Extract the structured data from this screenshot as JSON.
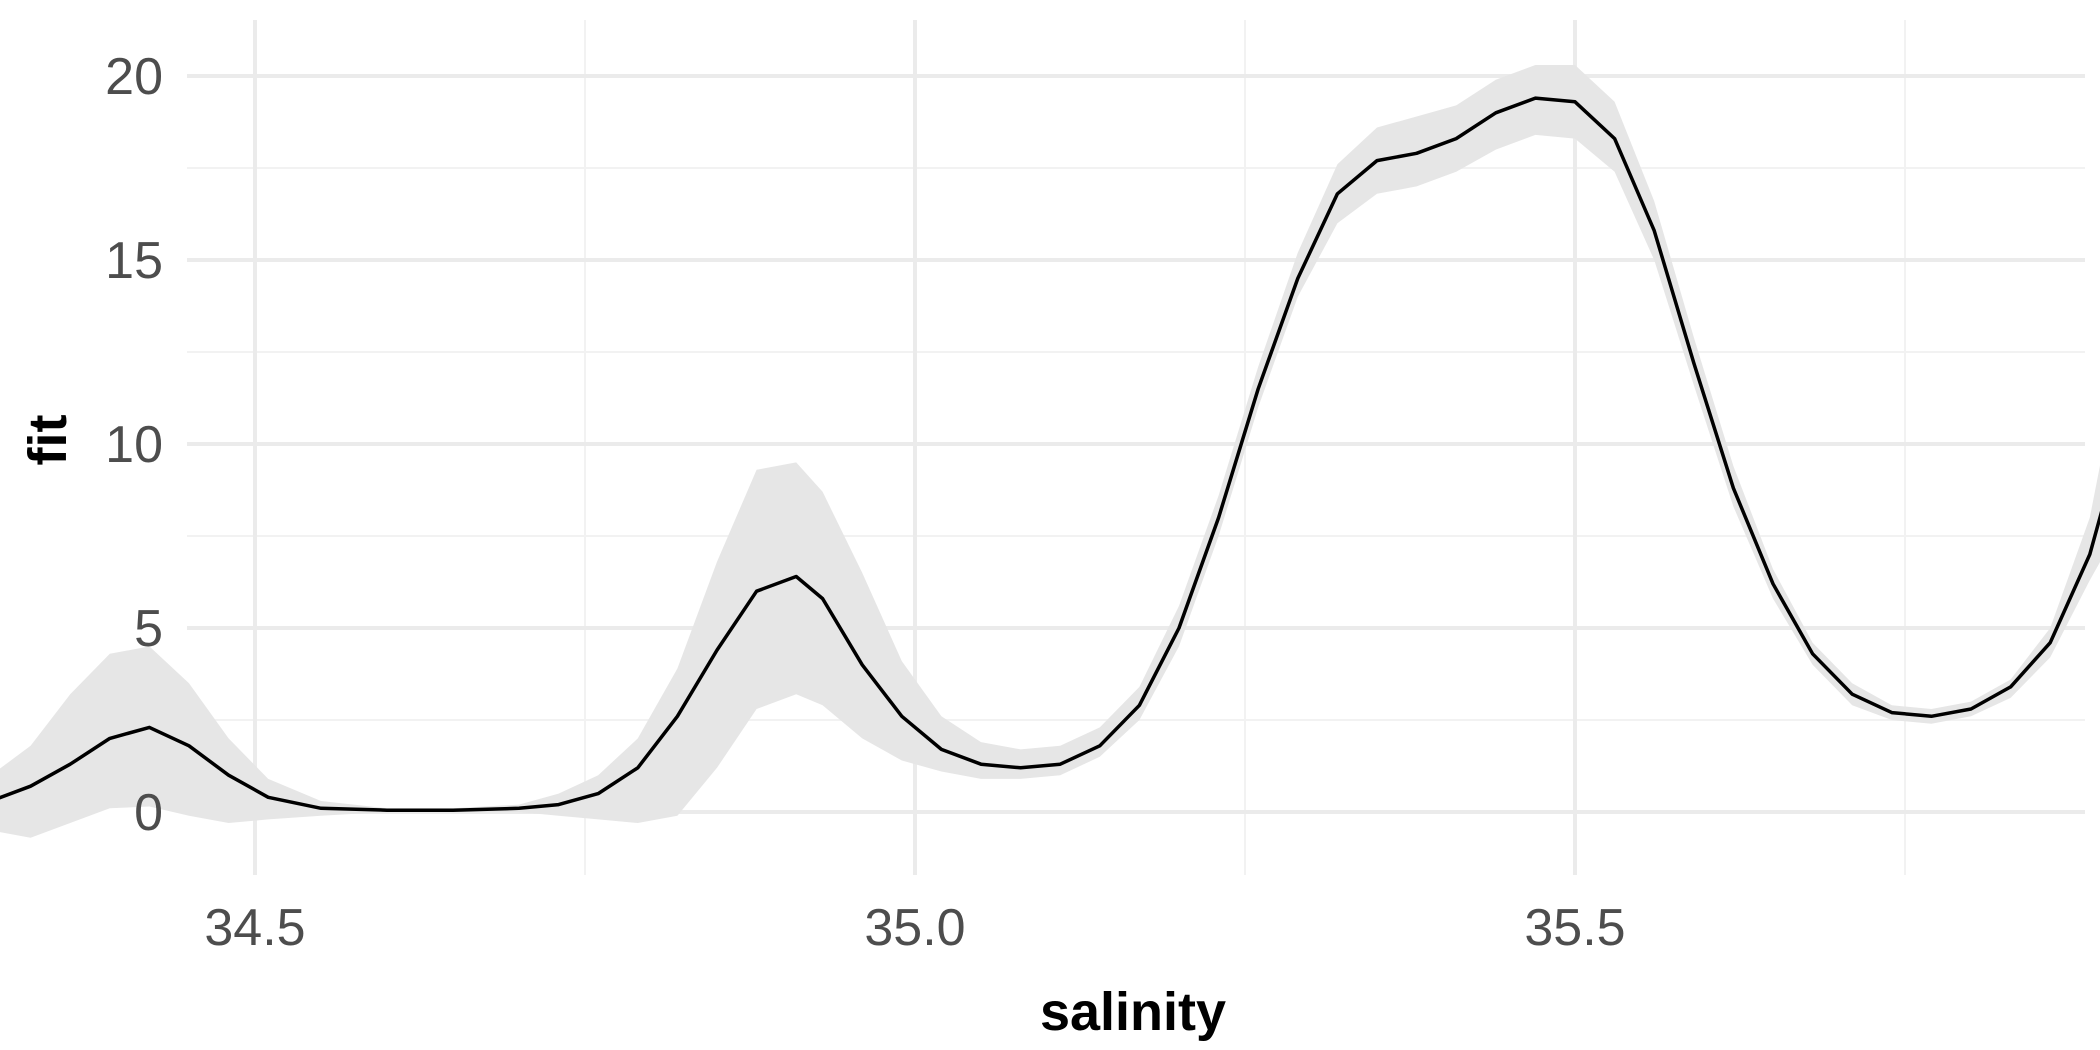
{
  "chart_data": {
    "type": "line",
    "title": "",
    "xlabel": "salinity",
    "ylabel": "fit",
    "xlim": [
      34.24,
      35.96
    ],
    "ylim": [
      -1.8,
      20.8
    ],
    "x_ticks": [
      34.5,
      35.0,
      35.5
    ],
    "x_tick_labels": [
      "34.5",
      "35.0",
      "35.5"
    ],
    "x_minor_ticks": [
      34.25,
      34.75,
      35.25,
      35.75
    ],
    "y_ticks": [
      0,
      5,
      10,
      15,
      20
    ],
    "y_tick_labels": [
      "0",
      "5",
      "10",
      "15",
      "20"
    ],
    "y_minor_ticks": [
      2.5,
      7.5,
      12.5,
      17.5
    ],
    "grid": true,
    "legend": "none",
    "colors": {
      "line": "#000000",
      "ribbon": "#e6e6e6",
      "grid_major": "#ebebeb",
      "grid_minor": "#f2f2f2",
      "tick_text": "#4d4d4d"
    },
    "series": [
      {
        "x": [
          34.27,
          34.3,
          34.33,
          34.36,
          34.39,
          34.42,
          34.45,
          34.48,
          34.51,
          34.55,
          34.6,
          34.65,
          34.7,
          34.73,
          34.76,
          34.79,
          34.82,
          34.85,
          34.88,
          34.91,
          34.93,
          34.96,
          34.99,
          35.02,
          35.05,
          35.08,
          35.11,
          35.14,
          35.17,
          35.2,
          35.23,
          35.26,
          35.29,
          35.32,
          35.35,
          35.38,
          35.41,
          35.44,
          35.47,
          35.5,
          35.53,
          35.56,
          35.59,
          35.62,
          35.65,
          35.68,
          35.71,
          35.74,
          35.77,
          35.8,
          35.83,
          35.86,
          35.89,
          35.92
        ],
        "y": [
          0.1,
          0.3,
          0.7,
          1.3,
          2.0,
          2.3,
          1.8,
          1.0,
          0.4,
          0.1,
          0.05,
          0.05,
          0.1,
          0.2,
          0.5,
          1.2,
          2.6,
          4.4,
          6.0,
          6.4,
          5.8,
          4.0,
          2.6,
          1.7,
          1.3,
          1.2,
          1.3,
          1.8,
          2.9,
          5.0,
          8.0,
          11.5,
          14.5,
          16.8,
          17.7,
          17.9,
          18.3,
          19.0,
          19.4,
          19.3,
          18.3,
          15.8,
          12.2,
          8.8,
          6.2,
          4.3,
          3.2,
          2.7,
          2.6,
          2.8,
          3.4,
          4.6,
          7.0,
          10.9
        ],
        "lower": [
          -0.2,
          -0.5,
          -0.7,
          -0.3,
          0.1,
          0.15,
          -0.1,
          -0.3,
          -0.2,
          -0.1,
          0.0,
          0.0,
          0.0,
          -0.1,
          -0.2,
          -0.3,
          -0.1,
          1.2,
          2.8,
          3.2,
          2.9,
          2.0,
          1.4,
          1.1,
          0.9,
          0.9,
          1.0,
          1.5,
          2.5,
          4.5,
          7.5,
          11.0,
          14.0,
          16.0,
          16.8,
          17.0,
          17.4,
          18.0,
          18.4,
          18.3,
          17.4,
          15.0,
          11.6,
          8.3,
          5.8,
          4.0,
          2.9,
          2.5,
          2.4,
          2.6,
          3.1,
          4.2,
          6.3,
          8.2
        ],
        "upper": [
          0.5,
          1.0,
          1.8,
          3.2,
          4.3,
          4.5,
          3.5,
          2.0,
          0.9,
          0.3,
          0.1,
          0.1,
          0.2,
          0.5,
          1.0,
          2.0,
          3.9,
          6.8,
          9.3,
          9.5,
          8.7,
          6.5,
          4.1,
          2.6,
          1.9,
          1.7,
          1.8,
          2.3,
          3.4,
          5.6,
          8.6,
          12.1,
          15.2,
          17.6,
          18.6,
          18.9,
          19.2,
          19.9,
          20.3,
          20.3,
          19.3,
          16.6,
          12.9,
          9.4,
          6.6,
          4.6,
          3.5,
          2.9,
          2.8,
          3.0,
          3.6,
          5.0,
          8.0,
          13.5
        ]
      }
    ]
  }
}
